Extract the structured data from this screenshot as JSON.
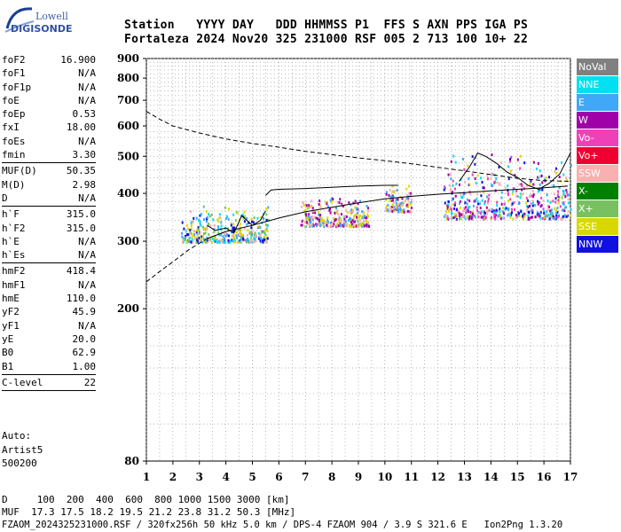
{
  "logo": {
    "line1": "Lowell",
    "line2": "DIGISONDE"
  },
  "header": {
    "row1": "Station   YYYY DAY   DDD HHMMSS P1  FFS S AXN PPS IGA PS",
    "row2": "Fortaleza 2024 Nov20 325 231000 RSF 005 2 713 100 10+ 22"
  },
  "params": [
    {
      "label": "foF2",
      "value": "16.900"
    },
    {
      "label": "foF1",
      "value": "N/A"
    },
    {
      "label": "foF1p",
      "value": "N/A"
    },
    {
      "label": "foE",
      "value": "N/A"
    },
    {
      "label": "foEp",
      "value": "0.53"
    },
    {
      "label": "fxI",
      "value": "18.00"
    },
    {
      "label": "foEs",
      "value": "N/A"
    },
    {
      "label": "fmin",
      "value": "3.30"
    },
    {
      "sep": true
    },
    {
      "label": "MUF(D)",
      "value": "50.35"
    },
    {
      "label": "M(D)",
      "value": "2.98"
    },
    {
      "label": "D",
      "value": "N/A"
    },
    {
      "sep": true
    },
    {
      "label": "h`F",
      "value": "315.0"
    },
    {
      "label": "h`F2",
      "value": "315.0"
    },
    {
      "label": "h`E",
      "value": "N/A"
    },
    {
      "label": "h`Es",
      "value": "N/A"
    },
    {
      "sep": true
    },
    {
      "label": "hmF2",
      "value": "418.4"
    },
    {
      "label": "hmF1",
      "value": "N/A"
    },
    {
      "label": "hmE",
      "value": "110.0"
    },
    {
      "label": "yF2",
      "value": "45.9"
    },
    {
      "label": "yF1",
      "value": "N/A"
    },
    {
      "label": "yE",
      "value": "20.0"
    },
    {
      "label": "B0",
      "value": "62.9"
    },
    {
      "label": "B1",
      "value": "1.00"
    },
    {
      "sep": true
    },
    {
      "label": "C-level",
      "value": "22"
    },
    {
      "sep": true
    }
  ],
  "auto": {
    "line1": "Auto:",
    "line2": "Artist5",
    "line3": "500200"
  },
  "footer": {
    "line1": "D     100  200  400  600  800 1000 1500 3000 [km]",
    "line2": "MUF  17.3 17.5 18.2 19.5 21.2 23.8 31.2 50.3 [MHz]",
    "line3": "FZAOM_2024325231000.RSF / 320fx256h 50 kHz 5.0 km / DPS-4 FZAOM 904 / 3.9 S 321.6 E   Ion2Png 1.3.20"
  },
  "legend": [
    {
      "label": "NoVal",
      "color": "#808080"
    },
    {
      "label": "NNE",
      "color": "#00e0f0"
    },
    {
      "label": "E",
      "color": "#40a8f8"
    },
    {
      "label": "W",
      "color": "#a000a8"
    },
    {
      "label": "Vo-",
      "color": "#f040b8"
    },
    {
      "label": "Vo+",
      "color": "#f00030"
    },
    {
      "label": "SSW",
      "color": "#f8b0b0"
    },
    {
      "label": "X-",
      "color": "#008000"
    },
    {
      "label": "X+",
      "color": "#78c060"
    },
    {
      "label": "SSE",
      "color": "#d8d800"
    },
    {
      "label": "NNW",
      "color": "#1010e0"
    }
  ],
  "chart_data": {
    "type": "scatter",
    "title": "",
    "xlabel": "",
    "ylabel": "",
    "xlim": [
      1,
      17
    ],
    "ylim": [
      80,
      900
    ],
    "y_scale": "log",
    "x_ticks": [
      "1",
      "2",
      "3",
      "4",
      "5",
      "6",
      "7",
      "8",
      "9",
      "10",
      "11",
      "12",
      "13",
      "14",
      "15",
      "16",
      "17"
    ],
    "y_ticks": [
      "80",
      "200",
      "300",
      "400",
      "500",
      "600",
      "700",
      "800",
      "900"
    ],
    "grid": true,
    "series": [
      {
        "name": "",
        "kind": "profile_upper_dashed",
        "x": [
          1,
          1.5,
          2,
          3,
          4,
          5,
          6,
          7,
          8,
          9,
          10,
          11,
          12,
          13,
          14,
          15,
          16,
          17
        ],
        "y": [
          655,
          625,
          600,
          575,
          555,
          540,
          528,
          515,
          505,
          495,
          487,
          478,
          468,
          458,
          448,
          438,
          432,
          430
        ]
      },
      {
        "name": "",
        "kind": "profile_lower_dashed",
        "x": [
          1,
          1.5,
          2,
          2.6,
          3.3
        ],
        "y": [
          235,
          250,
          265,
          285,
          305
        ]
      },
      {
        "name": "",
        "kind": "true_height_profile",
        "x": [
          3.3,
          4,
          5,
          6,
          7,
          8,
          9,
          10,
          11,
          12,
          13,
          14,
          15,
          16,
          16.9
        ],
        "y": [
          305,
          318,
          330,
          345,
          358,
          368,
          378,
          387,
          393,
          398,
          402,
          406,
          410,
          414,
          418
        ]
      },
      {
        "name": "",
        "kind": "trace_o_upper",
        "x": [
          5.5,
          5.7,
          6,
          7,
          8,
          9,
          10,
          10.5
        ],
        "y": [
          395,
          408,
          410,
          412,
          415,
          418,
          420,
          420
        ]
      },
      {
        "name": "",
        "kind": "trace_o_lower",
        "x": [
          3.3,
          3.6,
          4,
          4.3,
          4.6,
          5,
          5.3,
          5.5
        ],
        "y": [
          330,
          320,
          325,
          315,
          350,
          330,
          340,
          360
        ]
      },
      {
        "name": "",
        "kind": "trace_x",
        "x": [
          12.8,
          13.2,
          13.5,
          13.8,
          14.2,
          14.6,
          15,
          15.4,
          15.8,
          16.2,
          16.6,
          17
        ],
        "y": [
          430,
          470,
          510,
          500,
          480,
          455,
          440,
          420,
          410,
          425,
          450,
          510
        ]
      }
    ],
    "echo_clusters": [
      {
        "x_range": [
          2.3,
          5.6
        ],
        "y_range": [
          300,
          380
        ],
        "colors": [
          "#40a8f8",
          "#00e0f0",
          "#d8d800",
          "#f8b0b0",
          "#78c060",
          "#1010e0"
        ]
      },
      {
        "x_range": [
          6.8,
          9.4
        ],
        "y_range": [
          330,
          400
        ],
        "colors": [
          "#d8d800",
          "#f8b0b0",
          "#40a8f8",
          "#a000a8"
        ]
      },
      {
        "x_range": [
          10.0,
          11.0
        ],
        "y_range": [
          360,
          430
        ],
        "colors": [
          "#d8d800",
          "#f8b0b0",
          "#40a8f8",
          "#a000a8"
        ]
      },
      {
        "x_range": [
          12.2,
          17.0
        ],
        "y_range": [
          345,
          530
        ],
        "colors": [
          "#40a8f8",
          "#00e0f0",
          "#a000a8",
          "#d8d800",
          "#f8b0b0",
          "#1010e0",
          "#f040b8"
        ]
      }
    ]
  }
}
